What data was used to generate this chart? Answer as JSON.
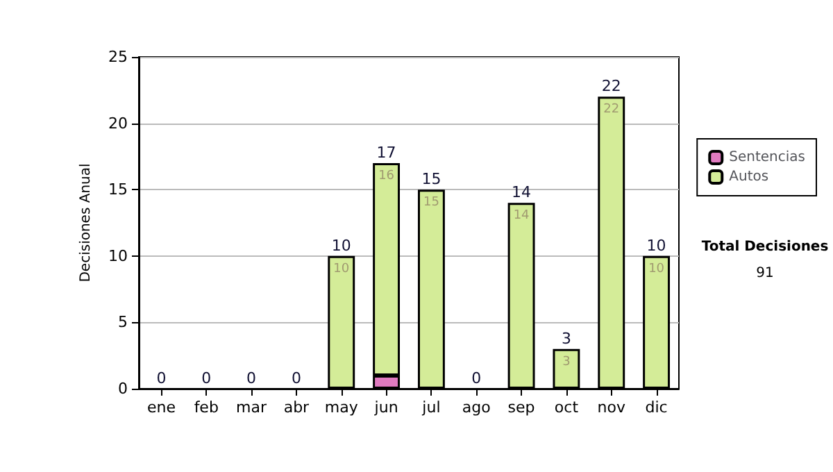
{
  "chart_data": {
    "type": "bar",
    "stacked": true,
    "ylabel": "Decisiones Anual",
    "categories": [
      "ene",
      "feb",
      "mar",
      "abr",
      "may",
      "jun",
      "jul",
      "ago",
      "sep",
      "oct",
      "nov",
      "dic"
    ],
    "series": [
      {
        "name": "Sentencias",
        "color": "#e07ac0",
        "values": [
          0,
          0,
          0,
          0,
          0,
          1,
          0,
          0,
          0,
          0,
          0,
          0
        ]
      },
      {
        "name": "Autos",
        "color": "#d4ec98",
        "values": [
          0,
          0,
          0,
          0,
          10,
          16,
          15,
          0,
          14,
          3,
          22,
          10
        ],
        "value_labels": [
          null,
          null,
          null,
          null,
          "10",
          "16",
          "15",
          null,
          "14",
          "3",
          "22",
          "10"
        ]
      }
    ],
    "totals": [
      "0",
      "0",
      "0",
      "0",
      "10",
      "17",
      "15",
      "0",
      "14",
      "3",
      "22",
      "10"
    ],
    "ylim": [
      0,
      25
    ],
    "yticks": [
      0,
      5,
      10,
      15,
      20,
      25
    ],
    "grid": "y",
    "legend": "right",
    "annotations": [
      "Total Decisiones",
      "91"
    ]
  }
}
